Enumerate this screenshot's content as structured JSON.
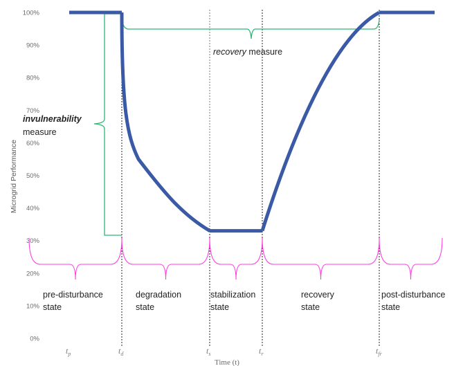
{
  "chart_data": {
    "type": "line",
    "ylabel": "Microgrid Performance",
    "xlabel": "Time (t)",
    "yticks": [
      "0%",
      "10%",
      "20%",
      "30%",
      "40%",
      "50%",
      "60%",
      "70%",
      "80%",
      "90%",
      "100%"
    ],
    "ylim": [
      0,
      100
    ],
    "grid": false,
    "time_markers": [
      {
        "id": "tp",
        "base": "t",
        "sub": "p"
      },
      {
        "id": "td",
        "base": "t",
        "sub": "d"
      },
      {
        "id": "ts",
        "base": "t",
        "sub": "s"
      },
      {
        "id": "tr",
        "base": "t",
        "sub": "r"
      },
      {
        "id": "tfr",
        "base": "t",
        "sub": "fr"
      }
    ],
    "performance_curve": {
      "color": "#3b5aa5",
      "segments": [
        {
          "phase": "pre-disturbance",
          "from": "tp",
          "to": "td",
          "value_start": 100,
          "value_end": 100
        },
        {
          "phase": "degradation",
          "from": "td",
          "to": "ts",
          "value_start": 100,
          "value_end": 33
        },
        {
          "phase": "stabilization",
          "from": "ts",
          "to": "tr",
          "value_start": 33,
          "value_end": 33
        },
        {
          "phase": "recovery",
          "from": "tr",
          "to": "tfr",
          "value_start": 33,
          "value_end": 100
        },
        {
          "phase": "post-disturbance",
          "from": "tfr",
          "to": null,
          "value_start": 100,
          "value_end": 100
        }
      ]
    },
    "annotations": {
      "recovery_measure": {
        "italic": "recovery",
        "rest": " measure",
        "color": "#2bb673"
      },
      "invulnerability_measure": {
        "line1": "invulnerability",
        "line2": "measure",
        "color": "#2bb673"
      }
    },
    "states": [
      {
        "line1": "pre-disturbance",
        "line2": "state"
      },
      {
        "line1": "degradation",
        "line2": "state"
      },
      {
        "line1": "stabilization",
        "line2": "state"
      },
      {
        "line1": "recovery",
        "line2": "state"
      },
      {
        "line1": "post-disturbance",
        "line2": "state"
      }
    ],
    "state_brace_color": "#ff3de0"
  }
}
